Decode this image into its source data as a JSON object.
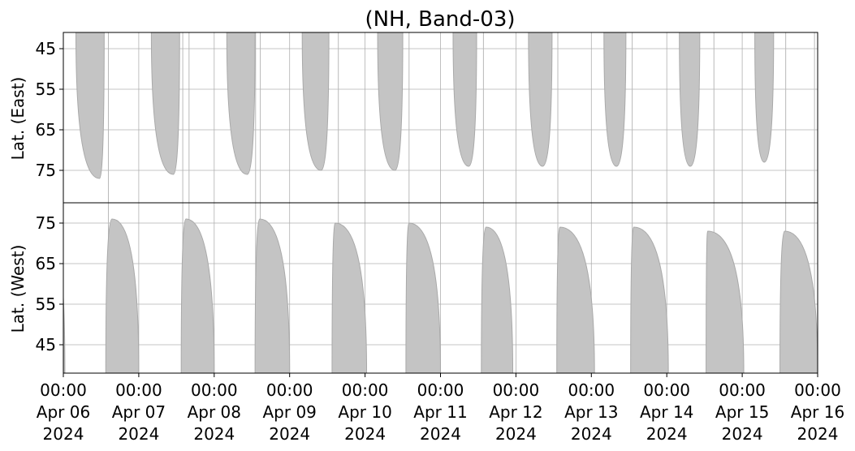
{
  "chart_data": {
    "type": "heatmap",
    "title": "(NH, Band-03)",
    "layout": "two stacked panels sharing a time axis",
    "x_range": [
      "2024-04-06 00:00",
      "2024-04-16 00:00"
    ],
    "x_ticks": [
      {
        "time": "00:00",
        "date": "Apr 06",
        "year": "2024"
      },
      {
        "time": "00:00",
        "date": "Apr 07",
        "year": "2024"
      },
      {
        "time": "00:00",
        "date": "Apr 08",
        "year": "2024"
      },
      {
        "time": "00:00",
        "date": "Apr 09",
        "year": "2024"
      },
      {
        "time": "00:00",
        "date": "Apr 10",
        "year": "2024"
      },
      {
        "time": "00:00",
        "date": "Apr 11",
        "year": "2024"
      },
      {
        "time": "00:00",
        "date": "Apr 12",
        "year": "2024"
      },
      {
        "time": "00:00",
        "date": "Apr 13",
        "year": "2024"
      },
      {
        "time": "00:00",
        "date": "Apr 14",
        "year": "2024"
      },
      {
        "time": "00:00",
        "date": "Apr 15",
        "year": "2024"
      },
      {
        "time": "00:00",
        "date": "Apr 16",
        "year": "2024"
      }
    ],
    "fill_color": "#c4c4c4",
    "grid": true,
    "panels": [
      {
        "name": "east",
        "ylabel": "Lat. (East)",
        "ylim": [
          41,
          83
        ],
        "y_inverted": true,
        "yticks": [
          45,
          55,
          65,
          75
        ],
        "passes": [
          {
            "start": "2024-04-06 04:00",
            "end": "2024-04-06 13:00",
            "turn": "2024-04-06 11:30",
            "max_lat": 77
          },
          {
            "start": "2024-04-07 04:00",
            "end": "2024-04-07 13:00",
            "turn": "2024-04-07 11:00",
            "max_lat": 76
          },
          {
            "start": "2024-04-08 04:00",
            "end": "2024-04-08 13:00",
            "turn": "2024-04-08 10:30",
            "max_lat": 76
          },
          {
            "start": "2024-04-09 04:00",
            "end": "2024-04-09 12:30",
            "turn": "2024-04-09 10:00",
            "max_lat": 75
          },
          {
            "start": "2024-04-10 04:00",
            "end": "2024-04-10 12:00",
            "turn": "2024-04-10 09:30",
            "max_lat": 75
          },
          {
            "start": "2024-04-11 04:00",
            "end": "2024-04-11 11:30",
            "turn": "2024-04-11 09:00",
            "max_lat": 74
          },
          {
            "start": "2024-04-12 04:00",
            "end": "2024-04-12 11:30",
            "turn": "2024-04-12 08:30",
            "max_lat": 74
          },
          {
            "start": "2024-04-13 04:00",
            "end": "2024-04-13 11:00",
            "turn": "2024-04-13 08:00",
            "max_lat": 74
          },
          {
            "start": "2024-04-14 04:00",
            "end": "2024-04-14 10:30",
            "turn": "2024-04-14 07:30",
            "max_lat": 74
          },
          {
            "start": "2024-04-15 04:00",
            "end": "2024-04-15 10:00",
            "turn": "2024-04-15 07:00",
            "max_lat": 73
          }
        ]
      },
      {
        "name": "west",
        "ylabel": "Lat. (West)",
        "ylim": [
          38,
          80
        ],
        "y_inverted": false,
        "yticks": [
          45,
          55,
          65,
          75
        ],
        "passes": [
          {
            "start": "2024-04-05 23:00",
            "end": "2024-04-06 00:30",
            "turn": "2024-04-05 20:00",
            "max_lat": 72
          },
          {
            "start": "2024-04-06 13:30",
            "end": "2024-04-07 00:00",
            "turn": "2024-04-06 15:30",
            "max_lat": 76
          },
          {
            "start": "2024-04-07 13:30",
            "end": "2024-04-08 00:00",
            "turn": "2024-04-07 15:00",
            "max_lat": 76
          },
          {
            "start": "2024-04-08 13:00",
            "end": "2024-04-09 00:00",
            "turn": "2024-04-08 14:30",
            "max_lat": 76
          },
          {
            "start": "2024-04-09 13:30",
            "end": "2024-04-10 00:30",
            "turn": "2024-04-09 14:30",
            "max_lat": 75
          },
          {
            "start": "2024-04-10 13:00",
            "end": "2024-04-11 00:00",
            "turn": "2024-04-10 14:00",
            "max_lat": 75
          },
          {
            "start": "2024-04-11 13:00",
            "end": "2024-04-11 23:00",
            "turn": "2024-04-11 14:30",
            "max_lat": 74
          },
          {
            "start": "2024-04-12 13:00",
            "end": "2024-04-13 01:00",
            "turn": "2024-04-12 14:00",
            "max_lat": 74
          },
          {
            "start": "2024-04-13 12:30",
            "end": "2024-04-14 00:30",
            "turn": "2024-04-13 13:30",
            "max_lat": 74
          },
          {
            "start": "2024-04-14 12:30",
            "end": "2024-04-15 00:30",
            "turn": "2024-04-14 13:00",
            "max_lat": 73
          },
          {
            "start": "2024-04-15 12:00",
            "end": "2024-04-16 00:00",
            "turn": "2024-04-15 13:30",
            "max_lat": 73
          }
        ]
      }
    ],
    "streak_times": [
      "2024-04-06 14:20",
      "2024-04-07 14:00",
      "2024-04-07 16:00",
      "2024-04-08 13:10",
      "2024-04-08 14:40",
      "2024-04-09 15:30",
      "2024-04-10 14:00",
      "2024-04-11 13:40",
      "2024-04-12 13:20",
      "2024-04-13 13:00",
      "2024-04-14 15:00",
      "2024-04-15 13:50",
      "2024-04-15 23:00"
    ]
  }
}
